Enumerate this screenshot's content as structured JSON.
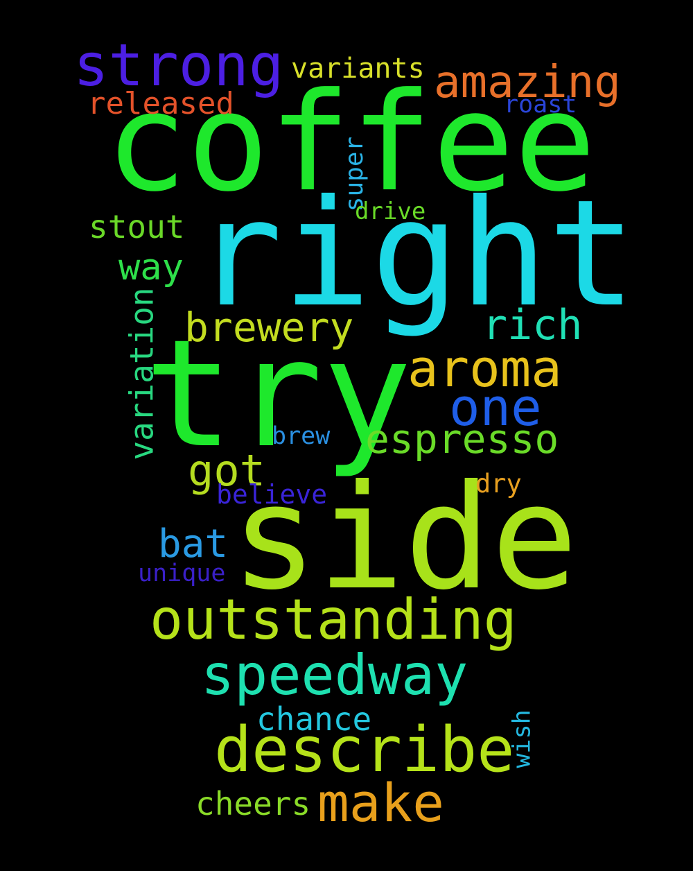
{
  "words": [
    {
      "text": "coffee",
      "color": "#1ee82c"
    },
    {
      "text": "right",
      "color": "#1cd9e6"
    },
    {
      "text": "try",
      "color": "#1ee82c"
    },
    {
      "text": "side",
      "color": "#a8e21a"
    },
    {
      "text": "strong",
      "color": "#4c1fe3"
    },
    {
      "text": "amazing",
      "color": "#e8702a"
    },
    {
      "text": "variants",
      "color": "#d8e02a"
    },
    {
      "text": "released",
      "color": "#e3522a"
    },
    {
      "text": "roast",
      "color": "#2a45d8"
    },
    {
      "text": "super",
      "color": "#2ab3e6"
    },
    {
      "text": "drive",
      "color": "#6adb28"
    },
    {
      "text": "stout",
      "color": "#6ad828"
    },
    {
      "text": "way",
      "color": "#2ee04a"
    },
    {
      "text": "brewery",
      "color": "#c3dc20"
    },
    {
      "text": "rich",
      "color": "#20e0b5"
    },
    {
      "text": "aroma",
      "color": "#e8c21c"
    },
    {
      "text": "one",
      "color": "#1f5ee8"
    },
    {
      "text": "variation",
      "color": "#28d880"
    },
    {
      "text": "espresso",
      "color": "#6adb28"
    },
    {
      "text": "brew",
      "color": "#2a8fe0"
    },
    {
      "text": "got",
      "color": "#b5dc20"
    },
    {
      "text": "dry",
      "color": "#e8a020"
    },
    {
      "text": "believe",
      "color": "#3a24d8"
    },
    {
      "text": "bat",
      "color": "#2a9ae3"
    },
    {
      "text": "unique",
      "color": "#3a20c8"
    },
    {
      "text": "outstanding",
      "color": "#b5e21a"
    },
    {
      "text": "speedway",
      "color": "#1ee0b0"
    },
    {
      "text": "chance",
      "color": "#24c8e0"
    },
    {
      "text": "describe",
      "color": "#b5e21a"
    },
    {
      "text": "wish",
      "color": "#24b8e0"
    },
    {
      "text": "make",
      "color": "#e8a01c"
    },
    {
      "text": "cheers",
      "color": "#8adb28"
    }
  ]
}
